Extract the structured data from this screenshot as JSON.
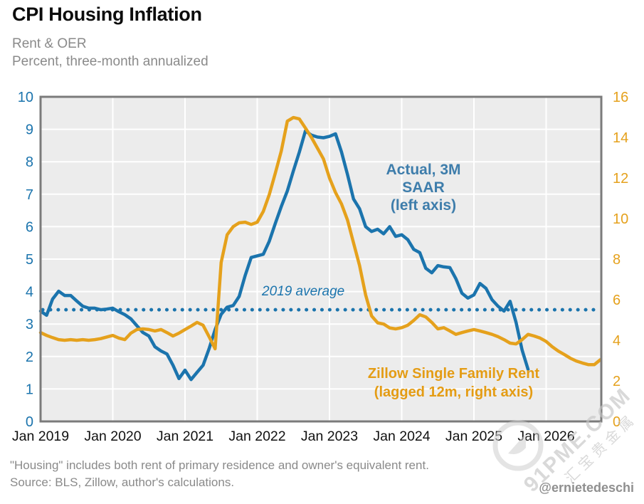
{
  "header": {
    "title": "CPI Housing Inflation",
    "subtitle1": "Rent & OER",
    "subtitle2": "Percent, three-month annualized"
  },
  "footer": {
    "note1": "\"Housing\" includes both rent of primary residence and owner's equivalent rent.",
    "note2": "Source: BLS, Zillow, author's calculations.",
    "handle": "@ernietedeschi"
  },
  "watermark": {
    "line1": "91PME.COM",
    "line2": "汇宝贵金属"
  },
  "chart_data": {
    "type": "line",
    "title": "CPI Housing Inflation",
    "subtitle": "Rent & OER — Percent, three-month annualized",
    "plot_bg": "#ececec",
    "grid": true,
    "x_ticks": [
      "Jan 2019",
      "Jan 2020",
      "Jan 2021",
      "Jan 2022",
      "Jan 2023",
      "Jan 2024",
      "Jan 2025",
      "Jan 2026"
    ],
    "left_axis": {
      "min": 0,
      "max": 10,
      "ticks": [
        0,
        1,
        2,
        3,
        4,
        5,
        6,
        7,
        8,
        9,
        10
      ],
      "label_color": "#1b74ad"
    },
    "right_axis": {
      "min": 0,
      "max": 16,
      "ticks": [
        0,
        2,
        4,
        6,
        8,
        10,
        12,
        14,
        16
      ],
      "label_color": "#e5a11c"
    },
    "x_tick_color": "#111111",
    "reference_line": {
      "label": "2019 average",
      "value": 3.44,
      "axis": "left",
      "color": "#1b74ad",
      "style": "dotted"
    },
    "series": [
      {
        "name": "Actual, 3M SAAR (left axis)",
        "axis": "left",
        "color": "#1b74ad",
        "start": "Jan 2019",
        "frequency": "monthly",
        "values": [
          3.4,
          3.27,
          3.77,
          4.01,
          3.88,
          3.88,
          3.71,
          3.55,
          3.49,
          3.49,
          3.44,
          3.46,
          3.49,
          3.38,
          3.29,
          3.16,
          2.95,
          2.74,
          2.63,
          2.3,
          2.17,
          2.08,
          1.73,
          1.32,
          1.58,
          1.29,
          1.51,
          1.73,
          2.24,
          2.83,
          3.3,
          3.52,
          3.57,
          3.85,
          4.5,
          5.05,
          5.1,
          5.15,
          5.55,
          6.1,
          6.62,
          7.1,
          7.72,
          8.3,
          8.95,
          8.82,
          8.76,
          8.74,
          8.78,
          8.86,
          8.3,
          7.6,
          6.85,
          6.55,
          6.0,
          5.85,
          5.92,
          5.78,
          6.0,
          5.7,
          5.75,
          5.6,
          5.3,
          5.2,
          4.72,
          4.58,
          4.8,
          4.76,
          4.74,
          4.4,
          3.95,
          3.8,
          3.9,
          4.25,
          4.1,
          3.75,
          3.55,
          3.4,
          3.7,
          3.05,
          2.2,
          1.6
        ]
      },
      {
        "name": "Zillow Single Family Rent (lagged 12m, right axis)",
        "axis": "right",
        "color": "#e5a11c",
        "start": "Jan 2019",
        "frequency": "monthly",
        "values": [
          4.38,
          4.24,
          4.13,
          4.03,
          4.0,
          4.03,
          4.0,
          4.03,
          4.0,
          4.03,
          4.08,
          4.16,
          4.24,
          4.11,
          4.03,
          4.35,
          4.53,
          4.56,
          4.53,
          4.46,
          4.53,
          4.38,
          4.21,
          4.35,
          4.53,
          4.7,
          4.88,
          4.74,
          4.18,
          3.58,
          7.84,
          9.2,
          9.6,
          9.79,
          9.82,
          9.71,
          9.82,
          10.35,
          11.18,
          12.24,
          13.33,
          14.8,
          14.98,
          14.91,
          14.46,
          14.0,
          13.47,
          12.94,
          12.0,
          11.28,
          10.72,
          9.92,
          8.8,
          7.68,
          6.24,
          5.2,
          4.86,
          4.8,
          4.61,
          4.56,
          4.62,
          4.74,
          4.98,
          5.26,
          5.15,
          4.88,
          4.56,
          4.62,
          4.46,
          4.29,
          4.38,
          4.46,
          4.53,
          4.46,
          4.38,
          4.29,
          4.18,
          4.03,
          3.86,
          3.82,
          4.03,
          4.29,
          4.21,
          4.11,
          3.94,
          3.68,
          3.47,
          3.3,
          3.12,
          2.98,
          2.88,
          2.8,
          2.8,
          3.04
        ]
      }
    ],
    "annotations": {
      "actual_lines": [
        "Actual, 3M",
        "SAAR",
        "(left axis)"
      ],
      "zillow_lines": [
        "Zillow Single Family Rent",
        "(lagged 12m, right axis)"
      ]
    }
  }
}
